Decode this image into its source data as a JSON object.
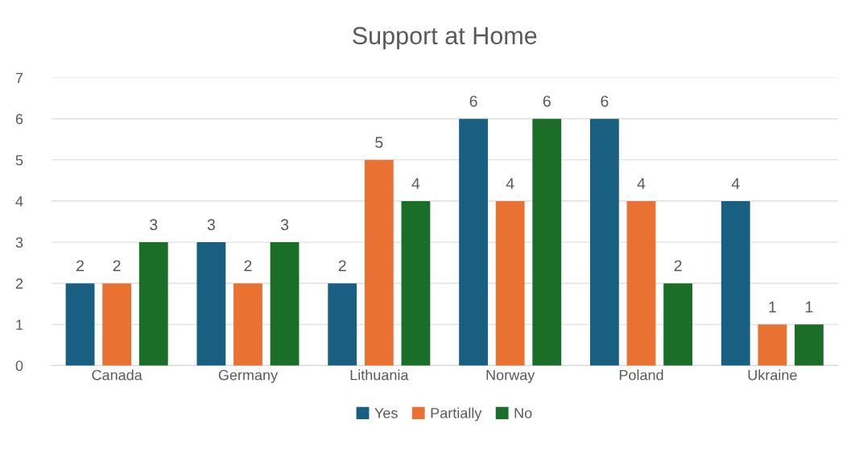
{
  "chart_data": {
    "type": "bar",
    "title": "Support at Home",
    "categories": [
      "Canada",
      "Germany",
      "Lithuania",
      "Norway",
      "Poland",
      "Ukraine"
    ],
    "series": [
      {
        "name": "Yes",
        "color": "#195f82",
        "values": [
          2,
          3,
          2,
          6,
          6,
          4
        ]
      },
      {
        "name": "Partially",
        "color": "#e97132",
        "values": [
          2,
          2,
          5,
          4,
          4,
          1
        ]
      },
      {
        "name": "No",
        "color": "#1a6e28",
        "values": [
          3,
          3,
          4,
          6,
          2,
          1
        ]
      }
    ],
    "ylim": [
      0,
      7
    ],
    "yticks": [
      0,
      1,
      2,
      3,
      4,
      5,
      6,
      7
    ],
    "grid": "y",
    "legend": "bottom",
    "data_labels": true
  }
}
